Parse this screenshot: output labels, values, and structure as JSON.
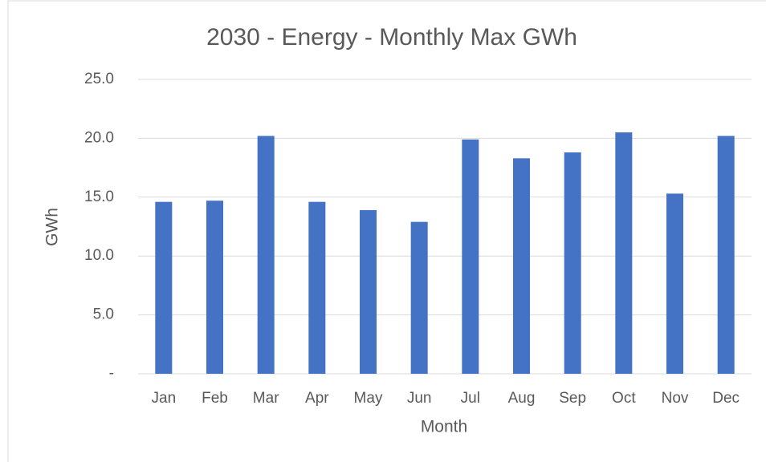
{
  "chart_data": {
    "type": "bar",
    "title": "2030 - Energy - Monthly Max GWh",
    "x_label": "Month",
    "y_label": "GWh",
    "categories": [
      "Jan",
      "Feb",
      "Mar",
      "Apr",
      "May",
      "Jun",
      "Jul",
      "Aug",
      "Sep",
      "Oct",
      "Nov",
      "Dec"
    ],
    "values": [
      14.6,
      14.7,
      20.2,
      14.6,
      13.9,
      12.9,
      19.9,
      18.3,
      18.8,
      20.5,
      15.3,
      20.2
    ],
    "color": "#4472c4",
    "ylim": [
      0,
      25
    ],
    "yticks": [
      {
        "value": 0,
        "label": "-"
      },
      {
        "value": 5,
        "label": "5.0"
      },
      {
        "value": 10,
        "label": "10.0"
      },
      {
        "value": 15,
        "label": "15.0"
      },
      {
        "value": 20,
        "label": "20.0"
      },
      {
        "value": 25,
        "label": "25.0"
      }
    ],
    "grid": true
  }
}
